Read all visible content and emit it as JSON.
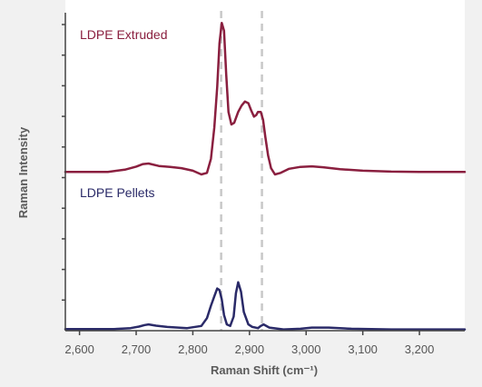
{
  "chart_data": {
    "type": "line",
    "title": "",
    "xlabel": "Raman Shift (cm⁻¹)",
    "ylabel": "Raman Intensity",
    "xlim": [
      2575,
      3280
    ],
    "ylim": [
      0,
      1
    ],
    "x_ticks": [
      2600,
      2700,
      2800,
      2900,
      3000,
      3100,
      3200
    ],
    "x_tick_labels": [
      "2,600",
      "2,700",
      "2,800",
      "2,900",
      "3,000",
      "3,100",
      "3,200"
    ],
    "y_tick_count": 10,
    "y_tick_labels_shown": false,
    "grid": false,
    "legend": "none; series labeled inline at top-left",
    "reference_lines_x": [
      2850,
      2922
    ],
    "reference_line_color": "#c8c8c8",
    "series": [
      {
        "name": "LDPE Extruded",
        "color": "#8a1f3f",
        "baseline": 0.508,
        "x": [
          2575,
          2650,
          2680,
          2700,
          2712,
          2722,
          2740,
          2760,
          2780,
          2800,
          2815,
          2825,
          2832,
          2838,
          2843,
          2847,
          2851,
          2855,
          2859,
          2863,
          2868,
          2873,
          2880,
          2886,
          2892,
          2898,
          2903,
          2908,
          2912,
          2915,
          2920,
          2924,
          2928,
          2933,
          2938,
          2945,
          2955,
          2970,
          2990,
          3010,
          3030,
          3060,
          3100,
          3150,
          3200,
          3280
        ],
        "y": [
          0.508,
          0.508,
          0.515,
          0.525,
          0.533,
          0.535,
          0.527,
          0.524,
          0.52,
          0.512,
          0.5,
          0.505,
          0.55,
          0.65,
          0.78,
          0.92,
          0.985,
          0.96,
          0.82,
          0.7,
          0.66,
          0.665,
          0.7,
          0.72,
          0.733,
          0.728,
          0.705,
          0.685,
          0.69,
          0.7,
          0.7,
          0.675,
          0.62,
          0.56,
          0.52,
          0.5,
          0.505,
          0.518,
          0.524,
          0.526,
          0.523,
          0.517,
          0.512,
          0.509,
          0.508,
          0.508
        ]
      },
      {
        "name": "LDPE Pellets",
        "color": "#2a2a68",
        "baseline": 0.005,
        "x": [
          2575,
          2660,
          2690,
          2705,
          2715,
          2722,
          2735,
          2755,
          2790,
          2815,
          2825,
          2832,
          2838,
          2843,
          2847,
          2851,
          2855,
          2860,
          2866,
          2872,
          2876,
          2880,
          2885,
          2890,
          2898,
          2905,
          2915,
          2920,
          2925,
          2935,
          2960,
          2990,
          3010,
          3040,
          3080,
          3150,
          3280
        ],
        "y": [
          0.005,
          0.005,
          0.008,
          0.013,
          0.018,
          0.02,
          0.016,
          0.012,
          0.008,
          0.015,
          0.04,
          0.08,
          0.11,
          0.135,
          0.13,
          0.1,
          0.05,
          0.02,
          0.015,
          0.045,
          0.12,
          0.155,
          0.125,
          0.06,
          0.02,
          0.012,
          0.008,
          0.015,
          0.02,
          0.01,
          0.004,
          0.006,
          0.01,
          0.01,
          0.006,
          0.004,
          0.004
        ]
      }
    ]
  }
}
